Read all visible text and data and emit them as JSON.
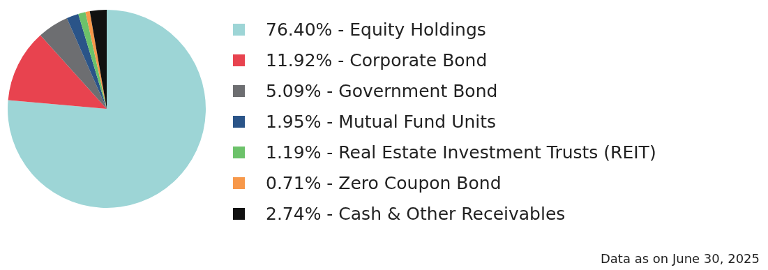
{
  "chart_data": {
    "type": "pie",
    "categories": [
      "Equity Holdings",
      "Corporate Bond",
      "Government Bond",
      "Mutual Fund Units",
      "Real Estate Investment Trusts (REIT)",
      "Zero Coupon Bond",
      "Cash & Other Receivables"
    ],
    "values": [
      76.4,
      11.92,
      5.09,
      1.95,
      1.19,
      0.71,
      2.74
    ],
    "value_labels": [
      "76.40%",
      "11.92%",
      "5.09%",
      "1.95%",
      "1.19%",
      "0.71%",
      "2.74%"
    ],
    "colors": [
      "#9dd5d6",
      "#e8434f",
      "#6d6e71",
      "#2a5488",
      "#6cc26a",
      "#f7984a",
      "#111111"
    ],
    "legend": "right",
    "annotations": [
      "Data as on June 30, 2025"
    ]
  }
}
